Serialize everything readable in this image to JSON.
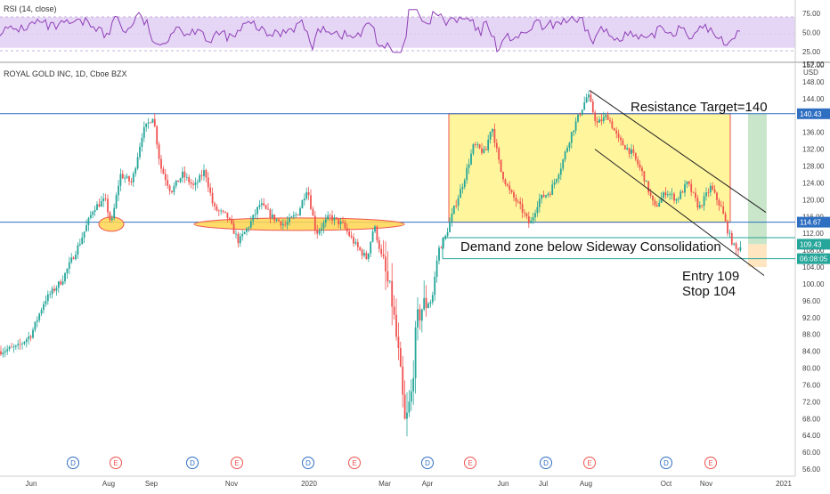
{
  "rsi_panel": {
    "title": "RSI (14, close)",
    "levels": [
      "75.00",
      "50.00",
      "25.00"
    ],
    "upper_band": 70,
    "lower_band": 30,
    "band_color": "#e6d6f5",
    "line_color": "#8e3fb8"
  },
  "price_panel": {
    "title": "ROYAL GOLD INC, 1D, Cboe BZX",
    "currency": "USD",
    "price_ticks": [
      "157.00",
      "152.00",
      "148.00",
      "144.00",
      "140.00",
      "136.00",
      "132.00",
      "128.00",
      "124.00",
      "120.00",
      "116.00",
      "112.00",
      "108.00",
      "104.00",
      "100.00",
      "96.00",
      "92.00",
      "88.00",
      "84.00",
      "80.00",
      "76.00",
      "72.00",
      "68.00",
      "64.00",
      "60.00",
      "56.00"
    ],
    "tick_values": [
      152,
      148,
      144,
      140,
      136,
      132,
      128,
      124,
      120,
      116,
      112,
      108,
      104,
      100,
      96,
      92,
      88,
      84,
      80,
      76,
      72,
      68,
      64,
      60,
      56
    ],
    "price_labels": [
      {
        "value": 140.43,
        "text": "140.43",
        "color": "#2f6fc2"
      },
      {
        "value": 114.67,
        "text": "114.67",
        "color": "#2f6fc2"
      },
      {
        "value": 109.43,
        "text": "109.43",
        "color": "#26a69a"
      },
      {
        "value": 106.0,
        "text": "06:08:05",
        "color": "#26a69a"
      }
    ],
    "annotations": {
      "resistance": "Resistance Target=140",
      "demand": "Demand zone below Sideway Consolidation",
      "entry": "Entry 109",
      "stop": "Stop 104"
    },
    "colors": {
      "up": "#26a69a",
      "down": "#ef5350",
      "zone_fill": "#fff59d",
      "zone_stroke": "#ef5350",
      "ellipse_fill": "#ffd54f",
      "hline": "#2f6fc2",
      "target_fill": "#a5d6a7",
      "stop_fill": "#ffe0b2"
    }
  },
  "time_axis": {
    "labels": [
      "Jun",
      "Aug",
      "Sep",
      "Nov",
      "2020",
      "Mar",
      "Apr",
      "Jun",
      "Jul",
      "Aug",
      "Oct",
      "Nov",
      "2021"
    ]
  },
  "events": [
    "D",
    "E",
    "D",
    "E",
    "D",
    "E",
    "D",
    "E",
    "D",
    "E",
    "D",
    "E"
  ],
  "chart_data": {
    "type": "candlestick",
    "title": "ROYAL GOLD INC, 1D, Cboe BZX",
    "ylabel": "USD",
    "ylim": [
      56,
      157
    ],
    "horizontal_levels": [
      140.43,
      114.67,
      109.43
    ],
    "zones": [
      {
        "name": "Sideway Consolidation",
        "low": 114.67,
        "high": 140.43
      },
      {
        "name": "Demand zone",
        "low": 106,
        "high": 111
      }
    ],
    "series": [
      {
        "approx_close_path": [
          {
            "x": "Jun",
            "y": 84
          },
          {
            "x": "Aug",
            "y": 119
          },
          {
            "x": "Sep",
            "y": 137
          },
          {
            "x": "Nov",
            "y": 114
          },
          {
            "x": "2020",
            "y": 122
          },
          {
            "x": "Mar",
            "y": 108
          },
          {
            "x": "Mar",
            "y": 62
          },
          {
            "x": "Apr",
            "y": 111
          },
          {
            "x": "Jun",
            "y": 136
          },
          {
            "x": "Jul",
            "y": 128
          },
          {
            "x": "Aug",
            "y": 146
          },
          {
            "x": "Oct",
            "y": 120
          },
          {
            "x": "Nov",
            "y": 109
          }
        ]
      }
    ],
    "rsi": {
      "name": "RSI (14, close)",
      "levels": [
        75,
        50,
        25
      ],
      "ylim": [
        20,
        85
      ]
    }
  }
}
